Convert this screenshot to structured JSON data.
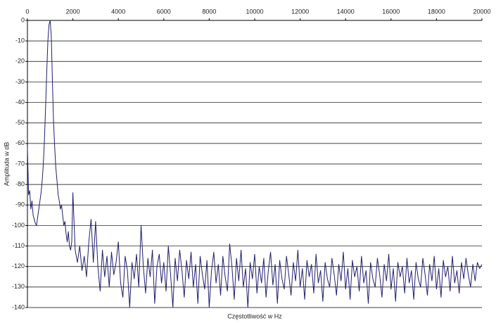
{
  "chart_data": {
    "type": "line",
    "xlabel": "Częstotliwość w Hz",
    "ylabel": "Amplituda w dB",
    "color": "#1f1f6e",
    "grid": true,
    "xlim": [
      0,
      20000
    ],
    "xticks": [
      0,
      2000,
      4000,
      6000,
      8000,
      10000,
      12000,
      14000,
      16000,
      18000,
      20000
    ],
    "ylim": [
      -140,
      0
    ],
    "yticks": [
      0,
      -10,
      -20,
      -30,
      -40,
      -50,
      -60,
      -70,
      -80,
      -90,
      -100,
      -110,
      -120,
      -130,
      -140
    ],
    "x": [
      0,
      50,
      100,
      150,
      200,
      250,
      300,
      350,
      400,
      450,
      500,
      550,
      600,
      650,
      700,
      750,
      800,
      850,
      900,
      950,
      1000,
      1050,
      1100,
      1150,
      1200,
      1250,
      1300,
      1350,
      1400,
      1450,
      1500,
      1550,
      1600,
      1650,
      1700,
      1750,
      1800,
      1850,
      1900,
      1950,
      2000,
      2100,
      2200,
      2300,
      2400,
      2500,
      2600,
      2700,
      2800,
      2900,
      3000,
      3100,
      3200,
      3300,
      3400,
      3500,
      3600,
      3700,
      3800,
      3900,
      4000,
      4100,
      4200,
      4300,
      4400,
      4500,
      4600,
      4700,
      4800,
      4900,
      5000,
      5100,
      5200,
      5300,
      5400,
      5500,
      5600,
      5700,
      5800,
      5900,
      6000,
      6100,
      6200,
      6300,
      6400,
      6500,
      6600,
      6700,
      6800,
      6900,
      7000,
      7100,
      7200,
      7300,
      7400,
      7500,
      7600,
      7700,
      7800,
      7900,
      8000,
      8100,
      8200,
      8300,
      8400,
      8500,
      8600,
      8700,
      8800,
      8900,
      9000,
      9100,
      9200,
      9300,
      9400,
      9500,
      9600,
      9700,
      9800,
      9900,
      10000,
      10100,
      10200,
      10300,
      10400,
      10500,
      10600,
      10700,
      10800,
      10900,
      11000,
      11100,
      11200,
      11300,
      11400,
      11500,
      11600,
      11700,
      11800,
      11900,
      12000,
      12100,
      12200,
      12300,
      12400,
      12500,
      12600,
      12700,
      12800,
      12900,
      13000,
      13100,
      13200,
      13300,
      13400,
      13500,
      13600,
      13700,
      13800,
      13900,
      14000,
      14100,
      14200,
      14300,
      14400,
      14500,
      14600,
      14700,
      14800,
      14900,
      15000,
      15100,
      15200,
      15300,
      15400,
      15500,
      15600,
      15700,
      15800,
      15900,
      16000,
      16100,
      16200,
      16300,
      16400,
      16500,
      16600,
      16700,
      16800,
      16900,
      17000,
      17100,
      17200,
      17300,
      17400,
      17500,
      17600,
      17700,
      17800,
      17900,
      18000,
      18100,
      18200,
      18300,
      18400,
      18500,
      18600,
      18700,
      18800,
      18900,
      19000,
      19100,
      19200,
      19300,
      19400,
      19500,
      19600,
      19700,
      19800,
      19900,
      20000
    ],
    "values": [
      -62,
      -85,
      -83,
      -92,
      -88,
      -95,
      -97,
      -99,
      -100,
      -96,
      -92,
      -88,
      -84,
      -78,
      -70,
      -58,
      -42,
      -25,
      -10,
      -2,
      0,
      -8,
      -30,
      -50,
      -62,
      -72,
      -78,
      -85,
      -88,
      -92,
      -90,
      -95,
      -100,
      -98,
      -104,
      -108,
      -103,
      -110,
      -112,
      -108,
      -84,
      -112,
      -118,
      -110,
      -122,
      -115,
      -125,
      -108,
      -97,
      -118,
      -98,
      -120,
      -132,
      -112,
      -125,
      -115,
      -130,
      -113,
      -124,
      -118,
      -108,
      -128,
      -135,
      -115,
      -122,
      -140,
      -118,
      -126,
      -114,
      -130,
      -100,
      -120,
      -133,
      -116,
      -125,
      -112,
      -138,
      -120,
      -114,
      -128,
      -118,
      -132,
      -110,
      -124,
      -140,
      -116,
      -127,
      -112,
      -122,
      -135,
      -117,
      -126,
      -113,
      -130,
      -119,
      -138,
      -115,
      -124,
      -131,
      -117,
      -140,
      -122,
      -113,
      -128,
      -119,
      -134,
      -115,
      -125,
      -132,
      -109,
      -120,
      -136,
      -116,
      -127,
      -112,
      -130,
      -121,
      -140,
      -118,
      -126,
      -114,
      -133,
      -120,
      -128,
      -116,
      -135,
      -122,
      -113,
      -129,
      -119,
      -138,
      -117,
      -126,
      -131,
      -115,
      -124,
      -134,
      -118,
      -127,
      -112,
      -130,
      -121,
      -136,
      -117,
      -125,
      -119,
      -133,
      -114,
      -128,
      -122,
      -137,
      -118,
      -126,
      -130,
      -116,
      -124,
      -134,
      -119,
      -127,
      -113,
      -131,
      -121,
      -136,
      -117,
      -125,
      -120,
      -132,
      -115,
      -128,
      -122,
      -138,
      -118,
      -126,
      -130,
      -116,
      -124,
      -135,
      -119,
      -127,
      -114,
      -131,
      -121,
      -137,
      -118,
      -125,
      -120,
      -133,
      -116,
      -128,
      -122,
      -136,
      -118,
      -126,
      -130,
      -116,
      -124,
      -134,
      -119,
      -127,
      -115,
      -131,
      -121,
      -135,
      -117,
      -125,
      -120,
      -132,
      -115,
      -128,
      -122,
      -133,
      -118,
      -126,
      -116,
      -124,
      -130,
      -119,
      -127,
      -118,
      -121,
      -119
    ]
  }
}
